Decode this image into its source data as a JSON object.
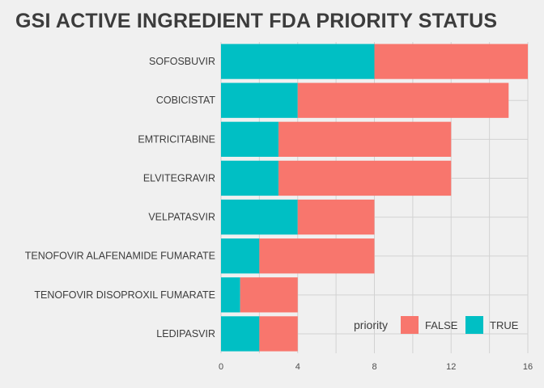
{
  "chart_data": {
    "type": "bar",
    "orientation": "horizontal",
    "stacked": true,
    "title": "GSI ACTIVE INGREDIENT FDA PRIORITY STATUS",
    "categories": [
      "SOFOSBUVIR",
      "COBICISTAT",
      "EMTRICITABINE",
      "ELVITEGRAVIR",
      "VELPATASVIR",
      "TENOFOVIR ALAFENAMIDE FUMARATE",
      "TENOFOVIR DISOPROXIL FUMARATE",
      "LEDIPASVIR"
    ],
    "series": [
      {
        "name": "TRUE",
        "color": "#00BFC4",
        "values": [
          8,
          4,
          3,
          3,
          4,
          2,
          1,
          2
        ]
      },
      {
        "name": "FALSE",
        "color": "#F8766D",
        "values": [
          8,
          11,
          9,
          9,
          4,
          6,
          3,
          2
        ]
      }
    ],
    "xlim": [
      0,
      16
    ],
    "xticks": [
      0,
      4,
      8,
      12,
      16
    ],
    "grid": true,
    "legend": {
      "title": "priority",
      "placement": "bottom-right",
      "entries": [
        {
          "label": "FALSE",
          "color": "#F8766D"
        },
        {
          "label": "TRUE",
          "color": "#00BFC4"
        }
      ]
    }
  }
}
